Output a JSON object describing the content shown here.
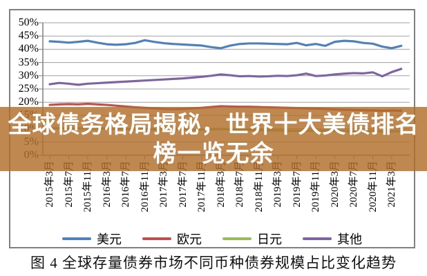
{
  "banner": {
    "line1": "全球债务格局揭秘，世界十大美债排名",
    "line2": "榜一览无余"
  },
  "caption": "图 4  全球存量债券市场不同币种债券规模占比变化趋势",
  "chart_data": {
    "type": "line",
    "title": "",
    "xlabel": "",
    "ylabel": "",
    "ylim": [
      0,
      50
    ],
    "ytick_step": 5,
    "ytick_labels": [
      "0%",
      "5%",
      "10%",
      "15%",
      "20%",
      "25%",
      "30%",
      "35%",
      "40%",
      "45%",
      "50%"
    ],
    "grid": true,
    "legend_position": "bottom",
    "x_tick_labels": [
      "2015年3月",
      "2015年7月",
      "2015年11月",
      "2016年3月",
      "2016年7月",
      "2016年11月",
      "2017年3月",
      "2017年7月",
      "2017年11月",
      "2018年3月",
      "2018年7月",
      "2018年11月",
      "2019年3月",
      "2019年7月",
      "2019年11月",
      "2020年3月",
      "2020年7月",
      "2020年11月",
      "2021年3月"
    ],
    "x": [
      "2015年3月",
      "2015年5月",
      "2015年7月",
      "2015年9月",
      "2015年11月",
      "2016年1月",
      "2016年3月",
      "2016年5月",
      "2016年7月",
      "2016年9月",
      "2016年11月",
      "2017年1月",
      "2017年3月",
      "2017年5月",
      "2017年7月",
      "2017年9月",
      "2017年11月",
      "2018年1月",
      "2018年3月",
      "2018年5月",
      "2018年7月",
      "2018年9月",
      "2018年11月",
      "2019年1月",
      "2019年3月",
      "2019年5月",
      "2019年7月",
      "2019年9月",
      "2019年11月",
      "2020年1月",
      "2020年3月",
      "2020年5月",
      "2020年7月",
      "2020年9月",
      "2020年11月",
      "2021年1月",
      "2021年3月",
      "2021年5月"
    ],
    "series": [
      {
        "name": "美元",
        "id": "usd",
        "color": "#4f81bd",
        "values": [
          43.0,
          42.8,
          42.5,
          42.8,
          43.2,
          42.5,
          41.9,
          41.7,
          41.9,
          42.4,
          43.4,
          42.8,
          42.3,
          42.0,
          41.8,
          41.6,
          41.4,
          40.8,
          40.4,
          41.4,
          42.0,
          42.2,
          42.2,
          42.1,
          42.0,
          41.9,
          42.4,
          41.5,
          42.0,
          41.3,
          42.8,
          43.2,
          43.0,
          42.4,
          42.1,
          41.0,
          40.4,
          41.3
        ]
      },
      {
        "name": "欧元",
        "id": "eur",
        "color": "#c0504d",
        "values": [
          19.0,
          19.2,
          19.3,
          19.2,
          19.4,
          19.2,
          19.0,
          18.7,
          18.4,
          18.1,
          17.9,
          17.7,
          17.5,
          17.4,
          17.5,
          17.7,
          17.9,
          18.2,
          18.5,
          18.4,
          18.3,
          18.3,
          18.2,
          18.1,
          18.0,
          17.9,
          17.8,
          17.7,
          17.6,
          17.5,
          17.3,
          17.2,
          17.1,
          17.0,
          16.9,
          16.8,
          16.9,
          16.8
        ]
      },
      {
        "name": "日元",
        "id": "jpy",
        "color": "#9bbb59",
        "values": [
          10.3,
          10.2,
          10.1,
          10.2,
          10.1,
          10.0,
          10.1,
          10.0,
          9.9,
          9.8,
          9.7,
          9.8,
          9.9,
          9.8,
          9.8,
          9.7,
          9.7,
          9.8,
          9.9,
          9.8,
          9.6,
          9.5,
          9.5,
          9.4,
          9.4,
          9.3,
          9.2,
          9.3,
          9.2,
          9.3,
          9.2,
          9.1,
          9.1,
          9.2,
          9.1,
          9.0,
          9.0,
          9.1
        ]
      },
      {
        "name": "其他",
        "id": "other",
        "color": "#8064a2",
        "values": [
          26.8,
          27.3,
          27.0,
          26.6,
          27.0,
          27.2,
          27.4,
          27.6,
          27.8,
          28.0,
          28.2,
          28.4,
          28.6,
          28.8,
          29.0,
          29.3,
          29.6,
          30.0,
          30.5,
          30.2,
          29.8,
          29.9,
          29.7,
          29.8,
          30.0,
          29.9,
          30.2,
          30.8,
          29.9,
          30.1,
          30.5,
          30.8,
          31.0,
          30.9,
          31.3,
          29.8,
          31.4,
          32.6
        ]
      }
    ]
  },
  "style_colors": {
    "gridline": "#a0a0a0",
    "axis": "#7f7f7f",
    "frame_border": "#7f7f7f",
    "banner_bg": "rgba(177,110,43,0.82)",
    "banner_text": "#ffffff"
  }
}
